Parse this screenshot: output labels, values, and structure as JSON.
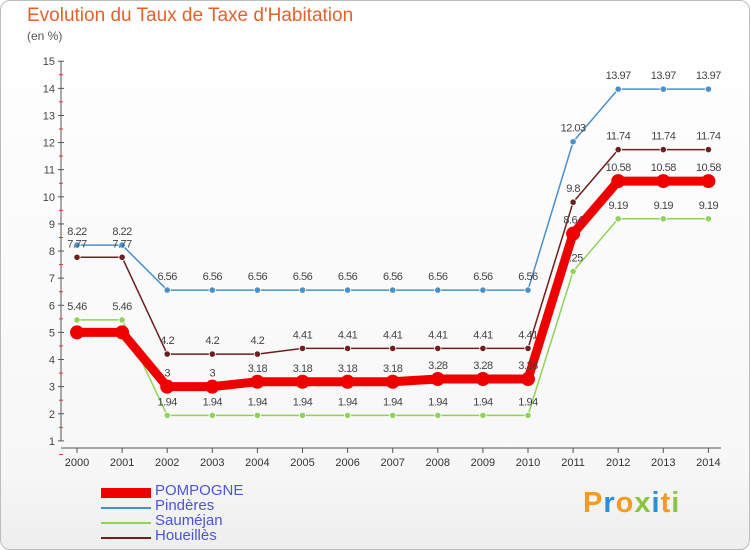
{
  "header": {
    "title": "Evolution du Taux de Taxe d'Habitation",
    "unit": "(en %)"
  },
  "logo": {
    "text": "Proxiti",
    "colors": [
      "#f39a1f",
      "#2a8fd6",
      "#f39a1f",
      "#8bc53f",
      "#2a8fd6",
      "#f39a1f",
      "#8bc53f"
    ]
  },
  "chart_data": {
    "type": "line",
    "title": "Evolution du Taux de Taxe d'Habitation",
    "ylabel": "(en %)",
    "xlabel": "",
    "x": [
      "2000",
      "2001",
      "2002",
      "2003",
      "2004",
      "2005",
      "2006",
      "2007",
      "2008",
      "2009",
      "2010",
      "2011",
      "2012",
      "2013",
      "2014"
    ],
    "ylim": [
      0,
      15
    ],
    "yticks": [
      "1",
      "2",
      "3",
      "4",
      "5",
      "6",
      "7",
      "8",
      "9",
      "10",
      "11",
      "12",
      "13",
      "14",
      "15"
    ],
    "grid": false,
    "legend_position": "bottom-left",
    "series": [
      {
        "name": "Pindères",
        "color": "#4a90c8",
        "values": [
          8.22,
          8.22,
          6.56,
          6.56,
          6.56,
          6.56,
          6.56,
          6.56,
          6.56,
          6.56,
          6.56,
          12.03,
          13.97,
          13.97,
          13.97
        ],
        "labels": [
          "8.22",
          "8.22",
          "6.56",
          "6.56",
          "6.56",
          "6.56",
          "6.56",
          "6.56",
          "6.56",
          "6.56",
          "6.56",
          "12.03",
          "13.97",
          "13.97",
          "13.97"
        ]
      },
      {
        "name": "Houeillès",
        "color": "#6e1f1f",
        "values": [
          7.77,
          7.77,
          4.2,
          4.2,
          4.2,
          4.41,
          4.41,
          4.41,
          4.41,
          4.41,
          4.41,
          9.8,
          11.74,
          11.74,
          11.74
        ],
        "labels": [
          "7.77",
          "7.77",
          "4.2",
          "4.2",
          "4.2",
          "4.41",
          "4.41",
          "4.41",
          "4.41",
          "4.41",
          "4.41",
          "9.8",
          "11.74",
          "11.74",
          "11.74"
        ]
      },
      {
        "name": "Sauméjan",
        "color": "#8ed45a",
        "values": [
          5.46,
          5.46,
          1.94,
          1.94,
          1.94,
          1.94,
          1.94,
          1.94,
          1.94,
          1.94,
          1.94,
          7.25,
          9.19,
          9.19,
          9.19
        ],
        "labels": [
          "5.46",
          "5.46",
          "1.94",
          "1.94",
          "1.94",
          "1.94",
          "1.94",
          "1.94",
          "1.94",
          "1.94",
          "1.94",
          "7.25",
          "9.19",
          "9.19",
          "9.19"
        ]
      },
      {
        "name": "POMPOGNE",
        "color": "#ee0000",
        "values": [
          5,
          5,
          3,
          3,
          3.18,
          3.18,
          3.18,
          3.18,
          3.28,
          3.28,
          3.28,
          8.64,
          10.58,
          10.58,
          10.58
        ],
        "labels": [
          "",
          "",
          "3",
          "3",
          "3.18",
          "3.18",
          "3.18",
          "3.18",
          "3.28",
          "3.28",
          "3.28",
          "8.64",
          "10.58",
          "10.58",
          "10.58"
        ]
      }
    ],
    "legend": [
      {
        "name": "POMPOGNE",
        "color": "#ee0000",
        "text_color": "#4b55d9"
      },
      {
        "name": "Pindères",
        "color": "#4a90c8",
        "text_color": "#4b55d9"
      },
      {
        "name": "Sauméjan",
        "color": "#8ed45a",
        "text_color": "#4b55d9"
      },
      {
        "name": "Houeillès",
        "color": "#6e1f1f",
        "text_color": "#4b55d9"
      }
    ]
  }
}
